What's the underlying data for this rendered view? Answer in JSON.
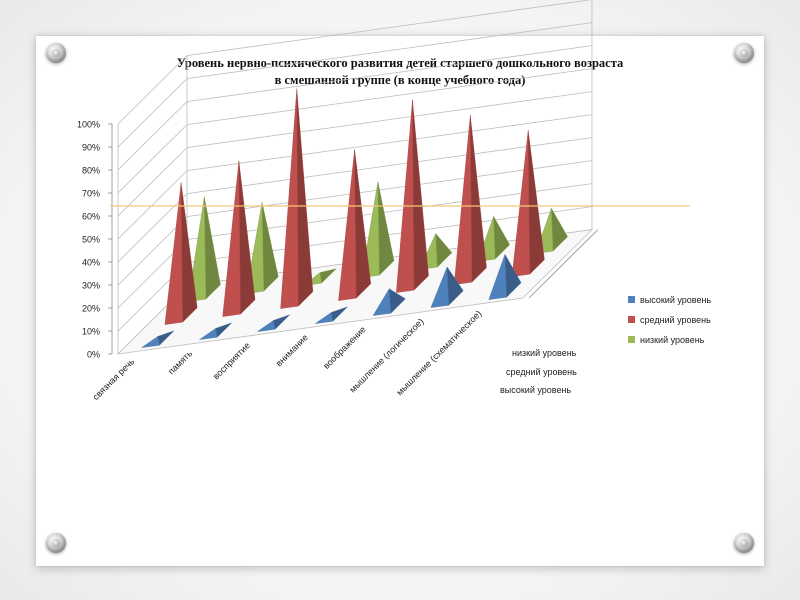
{
  "title": {
    "line1": "Уровень нервно-психического развития детей старшего дошкольного возраста",
    "line2": "в смешанной группе  (в конце учебного года)"
  },
  "chart_data": {
    "type": "bar",
    "variant": "3d-pyramid",
    "categories": [
      "связная речь",
      "память",
      "восприятие",
      "внимание",
      "воображение",
      "мышление (логическое)",
      "мышление (схематическое)"
    ],
    "depth_labels": [
      "низкий уровень",
      "средний уровень",
      "высокий уровень"
    ],
    "series": [
      {
        "name": "высокий уровень",
        "color": "#4f81bd",
        "values": [
          0,
          0,
          0,
          0,
          8,
          14,
          16
        ]
      },
      {
        "name": "средний уровень",
        "color": "#c0504d",
        "values": [
          58,
          64,
          92,
          62,
          80,
          70,
          60
        ]
      },
      {
        "name": "низкий уровень",
        "color": "#9bbb59",
        "values": [
          42,
          36,
          2,
          38,
          12,
          16,
          16
        ]
      }
    ],
    "y_ticks": [
      "0%",
      "10%",
      "20%",
      "30%",
      "40%",
      "50%",
      "60%",
      "70%",
      "80%",
      "90%",
      "100%"
    ],
    "ylim": [
      0,
      100
    ],
    "legend_position": "right",
    "grid": true,
    "reference_line_color": "#f4c67a"
  }
}
